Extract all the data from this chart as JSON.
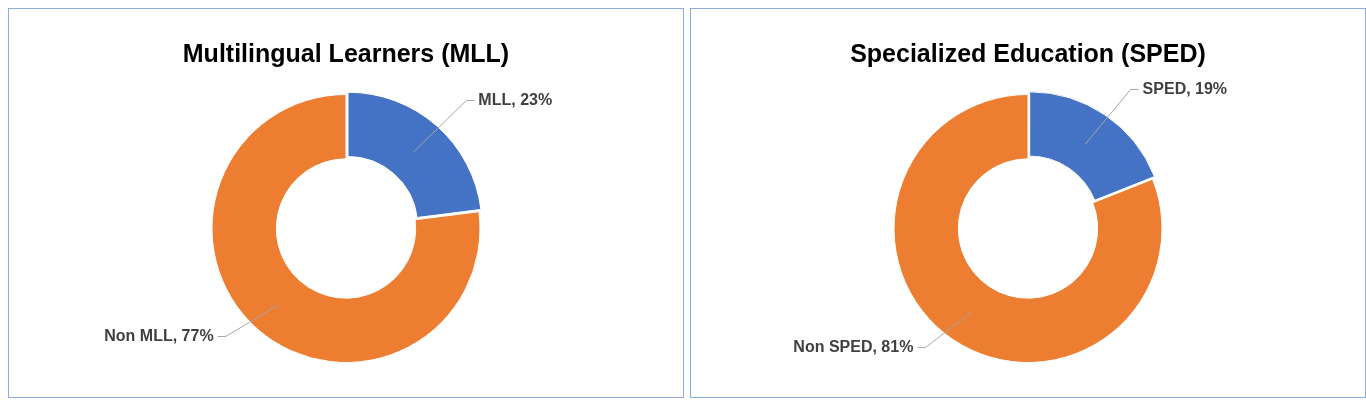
{
  "chart_data": [
    {
      "type": "donut",
      "title": "Multilingual Learners (MLL)",
      "categories": [
        "MLL",
        "Non MLL"
      ],
      "values": [
        23,
        77
      ],
      "colors": [
        "#4472c4",
        "#ed7d31"
      ],
      "value_labels": [
        "23%",
        "77%"
      ],
      "legend": false
    },
    {
      "type": "donut",
      "title": "Specialized Education (SPED)",
      "categories": [
        "SPED",
        "Non SPED"
      ],
      "values": [
        19,
        81
      ],
      "colors": [
        "#4472c4",
        "#ed7d31"
      ],
      "value_labels": [
        "19%",
        "81%"
      ],
      "legend": false
    }
  ]
}
